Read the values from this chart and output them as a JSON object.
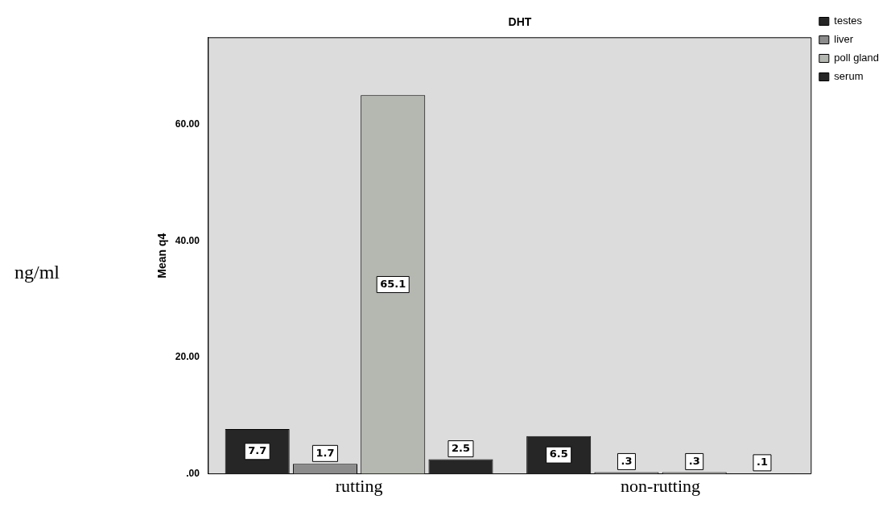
{
  "chart_data": {
    "type": "bar",
    "title": "DHT",
    "ylabel": "Mean q4",
    "annotations": [
      "ng/ml"
    ],
    "categories": [
      "rutting",
      "non-rutting"
    ],
    "series": [
      {
        "name": "testes",
        "color": "#262626",
        "values": [
          7.7,
          6.5
        ],
        "value_labels": [
          "7.7",
          "6.5"
        ]
      },
      {
        "name": "liver",
        "color": "#8c8c8c",
        "values": [
          1.7,
          0.3
        ],
        "value_labels": [
          "1.7",
          ".3"
        ]
      },
      {
        "name": "poll gland",
        "color": "#b4b8b0",
        "values": [
          65.1,
          0.3
        ],
        "value_labels": [
          "65.1",
          ".3"
        ]
      },
      {
        "name": "serum",
        "color": "#262626",
        "values": [
          2.5,
          0.1
        ],
        "value_labels": [
          "2.5",
          ".1"
        ]
      }
    ],
    "ylim": [
      0,
      75
    ],
    "yticks": [
      {
        "value": 0,
        "label": ".00"
      },
      {
        "value": 20,
        "label": "20.00"
      },
      {
        "value": 40,
        "label": "40.00"
      },
      {
        "value": 60,
        "label": "60.00"
      }
    ],
    "grid": false,
    "legend": "top right"
  }
}
